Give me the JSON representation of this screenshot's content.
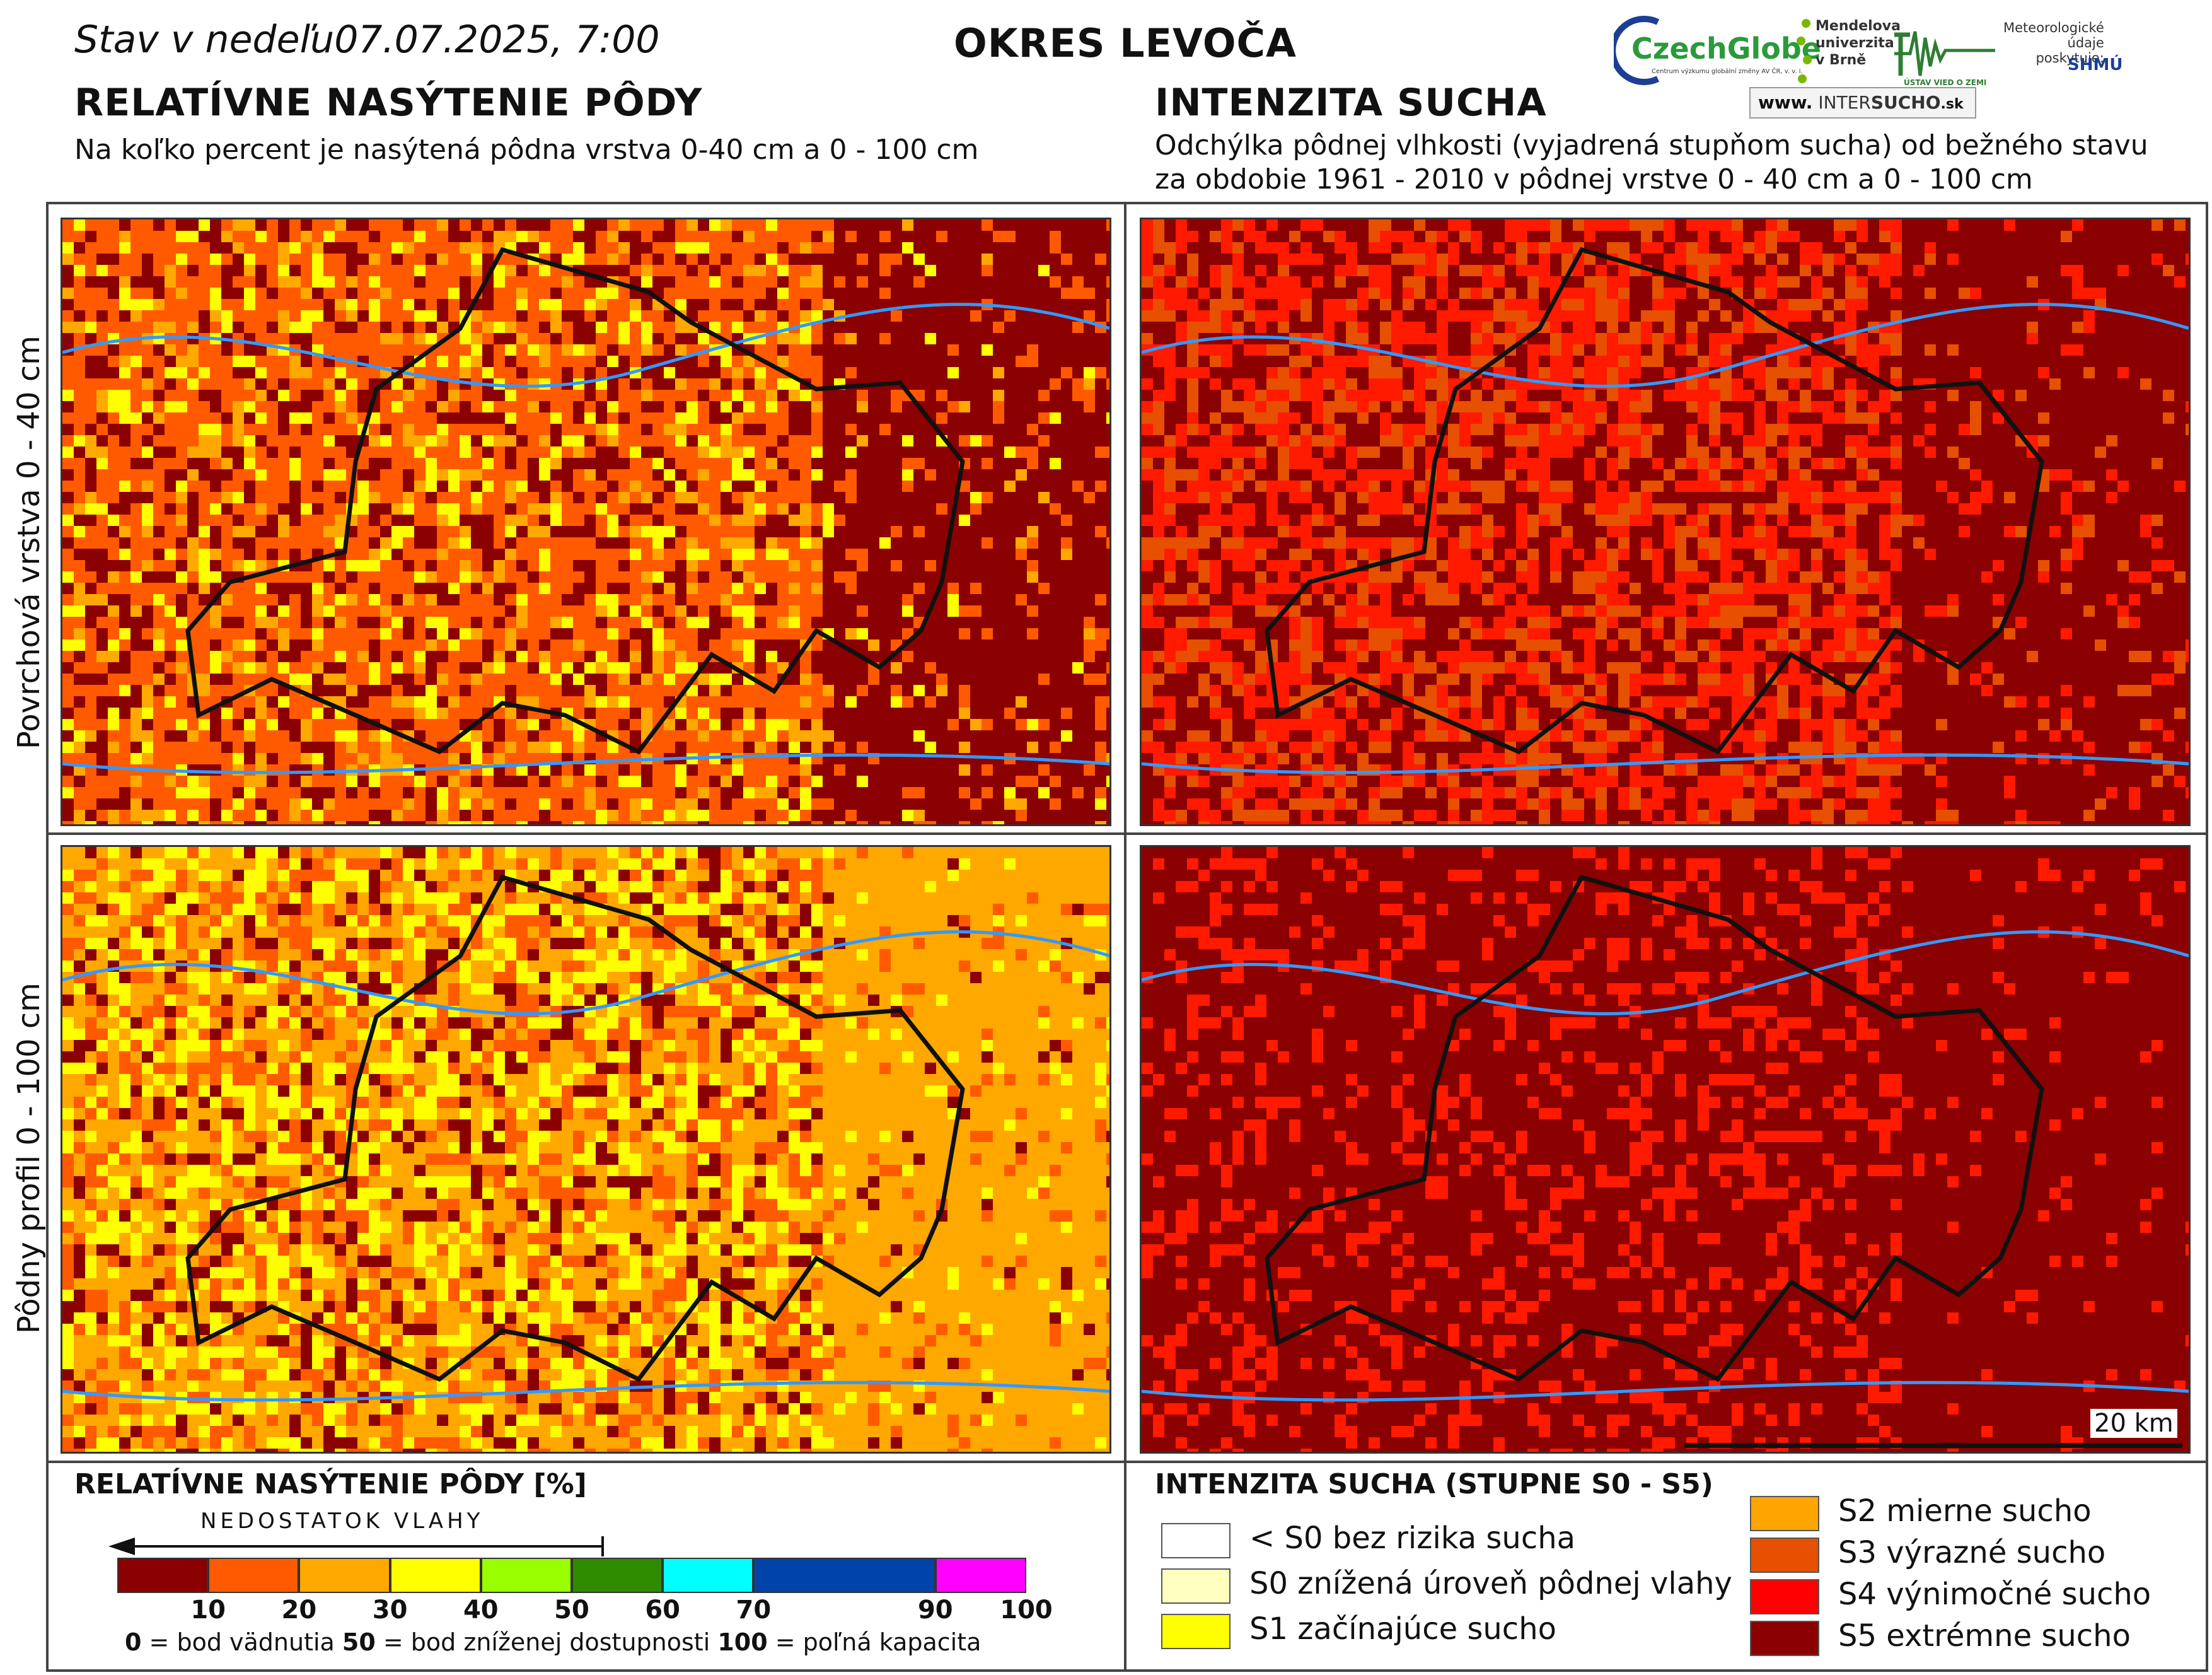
{
  "header": {
    "status_prefix": "Stav v nedeľu",
    "date": "07.07.2025, 7:00",
    "district": "OKRES  LEVOČA"
  },
  "logos": {
    "czechglobe": "CzechGlobe",
    "czechglobe_sub": "Centrum výzkumu globální změny AV ČR, v. v. i.",
    "mendel": [
      "Mendelova",
      "univerzita",
      "v Brně"
    ],
    "ustav": "ÚSTAV VIED O ZEMI",
    "meteo": [
      "Meteorologické",
      "údaje",
      "poskytuje:"
    ],
    "shmu": "SHMÚ",
    "site_prefix": "www.",
    "site_inter": "INTER",
    "site_sucho": "SUCHO",
    "site_suffix": ".sk"
  },
  "left_section": {
    "title": "RELATÍVNE NASÝTENIE PÔDY",
    "subtitle": "Na koľko percent je nasýtená pôdna vrstva 0-40 cm a 0 - 100 cm"
  },
  "right_section": {
    "title": "INTENZITA SUCHA",
    "subtitle_line1": "Odchýlka pôdnej vlhkosti (vyjadrená stupňom sucha) od bežného stavu",
    "subtitle_line2": "za obdobie 1961 - 2010 v pôdnej vrstve 0 - 40 cm a 0 - 100 cm"
  },
  "rows": {
    "top": "Povrchová vrstva 0 - 40 cm",
    "bottom": "Pôdny profil 0 - 100 cm"
  },
  "scale_bar": "20 km",
  "saturation_legend": {
    "title": "RELATÍVNE NASÝTENIE PÔDY [%]",
    "arrow_label": "NEDOSTATOK VLAHY",
    "bins": [
      {
        "from": 0,
        "to": 10,
        "color": "#8b0000"
      },
      {
        "from": 10,
        "to": 20,
        "color": "#ff5a00"
      },
      {
        "from": 20,
        "to": 30,
        "color": "#ffa800"
      },
      {
        "from": 30,
        "to": 40,
        "color": "#ffff00"
      },
      {
        "from": 40,
        "to": 50,
        "color": "#99ff00"
      },
      {
        "from": 50,
        "to": 60,
        "color": "#2e8b00"
      },
      {
        "from": 60,
        "to": 70,
        "color": "#00ffff"
      },
      {
        "from": 70,
        "to": 90,
        "color": "#0044aa"
      },
      {
        "from": 90,
        "to": 100,
        "color": "#ff00ff"
      }
    ],
    "ticks": [
      "10",
      "20",
      "30",
      "40",
      "50",
      "60",
      "70",
      "90",
      "100"
    ],
    "note_0_val": "0",
    "note_0_text": " = bod vädnutia ",
    "note_50_val": "50",
    "note_50_text": " = bod zníženej dostupnosti ",
    "note_100_val": "100",
    "note_100_text": " = poľná kapacita"
  },
  "drought_legend": {
    "title": "INTENZITA SUCHA (STUPNE S0 - S5)",
    "items_left": [
      {
        "label": "< S0 bez rizika sucha",
        "color": "#ffffff"
      },
      {
        "label": "S0 znížená úroveň pôdnej vlahy",
        "color": "#ffffc0"
      },
      {
        "label": "S1 začínajúce sucho",
        "color": "#ffff00"
      }
    ],
    "items_right": [
      {
        "label": "S2 mierne sucho",
        "color": "#ffa500"
      },
      {
        "label": "S3 výrazné sucho",
        "color": "#e65000"
      },
      {
        "label": "S4 výnimočné sucho",
        "color": "#ff0000"
      },
      {
        "label": "S5 extrémne sucho",
        "color": "#8b0000"
      }
    ]
  }
}
